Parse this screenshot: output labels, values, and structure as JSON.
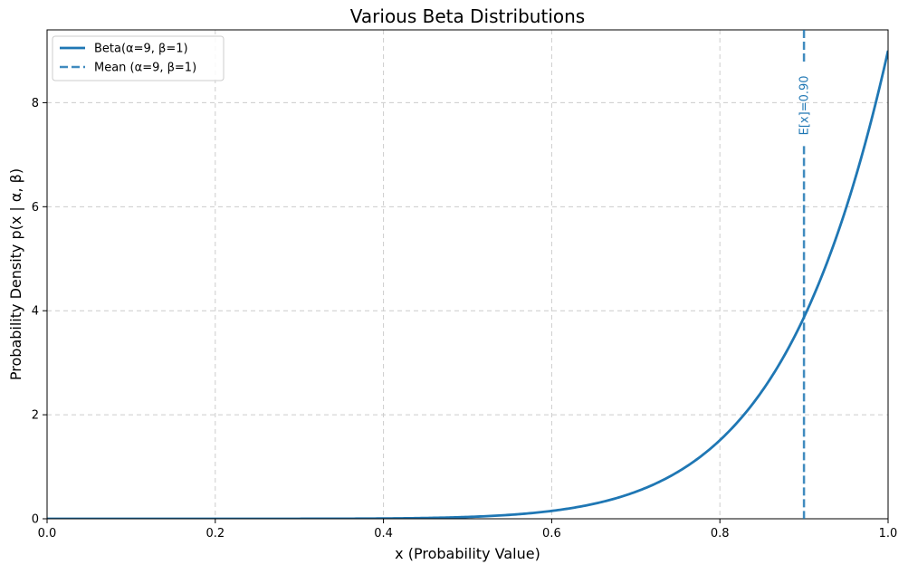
{
  "chart_data": {
    "type": "line",
    "title": "Various Beta Distributions",
    "xlabel": "x (Probability Value)",
    "ylabel": "Probability Density p(x | α, β)",
    "xlim": [
      0.0,
      1.0
    ],
    "ylim": [
      0,
      9.4
    ],
    "x_ticks": [
      0.0,
      0.2,
      0.4,
      0.6,
      0.8,
      1.0
    ],
    "x_tick_labels": [
      "0.0",
      "0.2",
      "0.4",
      "0.6",
      "0.8",
      "1.0"
    ],
    "y_ticks": [
      0,
      2,
      4,
      6,
      8
    ],
    "y_tick_labels": [
      "0",
      "2",
      "4",
      "6",
      "8"
    ],
    "grid": true,
    "legend_position": "top-left",
    "series": [
      {
        "name": "Beta(α=9, β=1)",
        "alpha": 9,
        "beta": 1,
        "color": "#1f77b4",
        "style": "solid"
      }
    ],
    "reference_lines": [
      {
        "name": "Mean (α=9, β=1)",
        "orientation": "vertical",
        "x": 0.9,
        "color": "#1f77b4",
        "style": "dashed",
        "annotation": "E[x]=0.90",
        "annotation_y": 8
      }
    ]
  }
}
